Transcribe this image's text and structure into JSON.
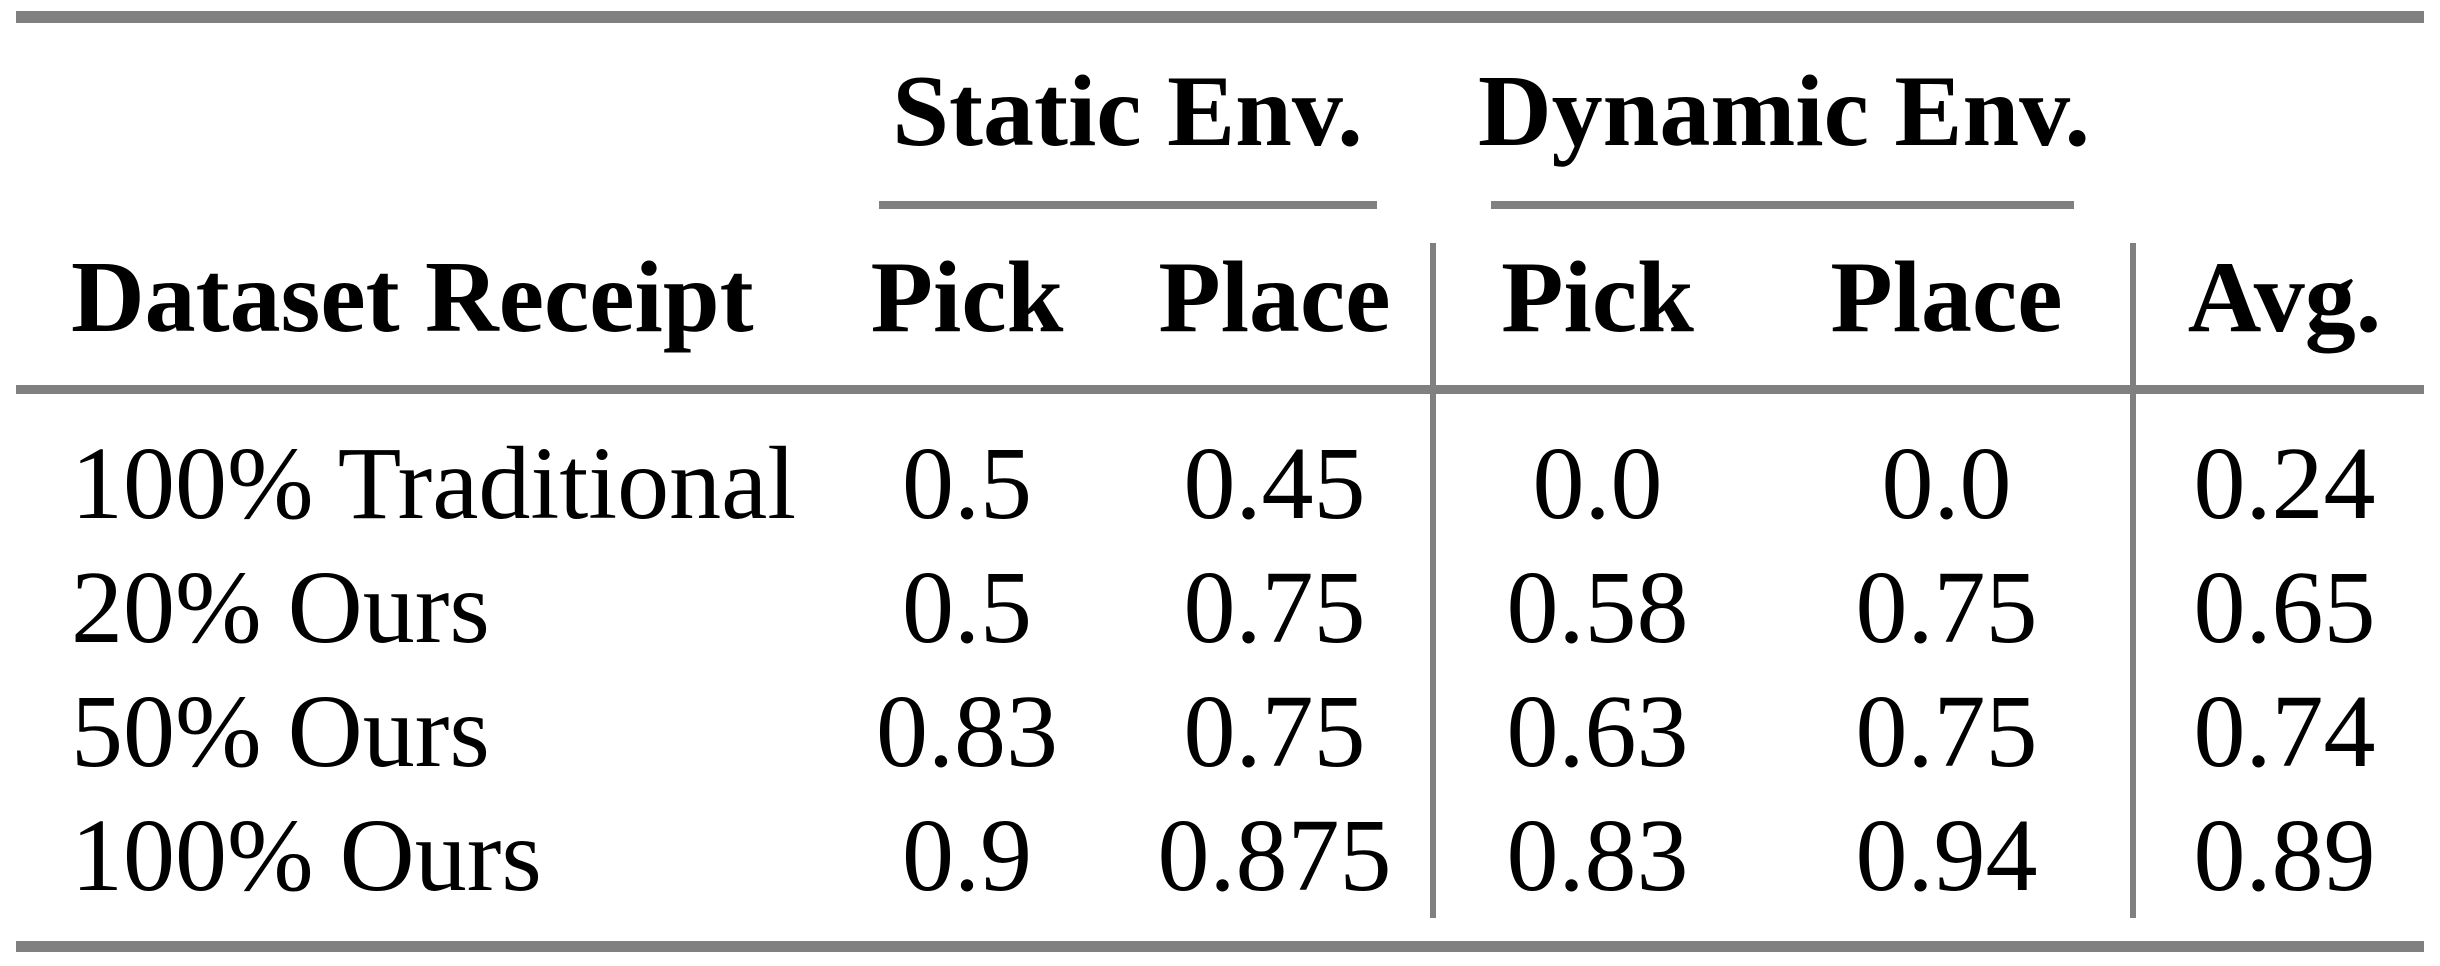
{
  "colors": {
    "rule_gray": "#808080",
    "text_black": "#000000",
    "background": "#ffffff"
  },
  "table": {
    "group_headers": {
      "static": "Static Env.",
      "dynamic": "Dynamic Env."
    },
    "columns": {
      "row_label": "Dataset Receipt",
      "static_pick": "Pick",
      "static_place": "Place",
      "dynamic_pick": "Pick",
      "dynamic_place": "Place",
      "avg": "Avg."
    },
    "rows": [
      {
        "label": "100% Traditional",
        "values": [
          "0.5",
          "0.45",
          "0.0",
          "0.0",
          "0.24"
        ]
      },
      {
        "label": "20% Ours",
        "values": [
          "0.5",
          "0.75",
          "0.58",
          "0.75",
          "0.65"
        ]
      },
      {
        "label": "50% Ours",
        "values": [
          "0.83",
          "0.75",
          "0.63",
          "0.75",
          "0.74"
        ]
      },
      {
        "label": "100% Ours",
        "values": [
          "0.9",
          "0.875",
          "0.83",
          "0.94",
          "0.89"
        ]
      }
    ]
  }
}
